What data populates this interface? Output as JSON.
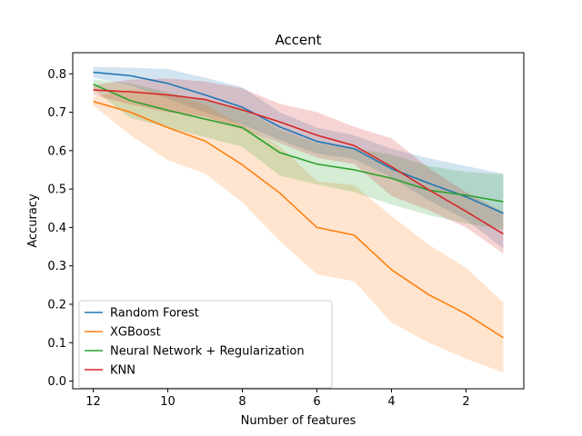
{
  "chart_data": {
    "type": "line",
    "title": "Accent",
    "xlabel": "Number of features",
    "ylabel": "Accuracy",
    "xlim": [
      12.55,
      0.45
    ],
    "ylim": [
      -0.02,
      0.855
    ],
    "x_ticks": [
      12,
      10,
      8,
      6,
      4,
      2
    ],
    "y_ticks": [
      0.0,
      0.1,
      0.2,
      0.3,
      0.4,
      0.5,
      0.6,
      0.7,
      0.8
    ],
    "legend_position": "lower-left",
    "grid": false,
    "x": [
      12,
      11,
      10,
      9,
      8,
      7,
      6,
      5,
      4,
      3,
      2,
      1
    ],
    "series": [
      {
        "name": "Random Forest",
        "color": "#1f77b4",
        "values": [
          0.804,
          0.795,
          0.775,
          0.745,
          0.713,
          0.662,
          0.624,
          0.605,
          0.553,
          0.515,
          0.48,
          0.437
        ],
        "lower": [
          0.79,
          0.77,
          0.735,
          0.7,
          0.668,
          0.628,
          0.592,
          0.578,
          0.53,
          0.47,
          0.42,
          0.345
        ],
        "upper": [
          0.818,
          0.816,
          0.812,
          0.79,
          0.765,
          0.7,
          0.66,
          0.64,
          0.605,
          0.58,
          0.56,
          0.54
        ]
      },
      {
        "name": "XGBoost",
        "color": "#ff7f0e",
        "values": [
          0.728,
          0.7,
          0.66,
          0.625,
          0.563,
          0.49,
          0.4,
          0.38,
          0.29,
          0.225,
          0.175,
          0.113
        ],
        "lower": [
          0.718,
          0.64,
          0.575,
          0.54,
          0.465,
          0.365,
          0.278,
          0.26,
          0.152,
          0.1,
          0.058,
          0.022
        ],
        "upper": [
          0.74,
          0.76,
          0.748,
          0.72,
          0.665,
          0.612,
          0.52,
          0.51,
          0.43,
          0.355,
          0.295,
          0.205
        ]
      },
      {
        "name": "Neural Network + Regularization",
        "color": "#2ca02c",
        "values": [
          0.773,
          0.73,
          0.705,
          0.682,
          0.66,
          0.595,
          0.565,
          0.55,
          0.528,
          0.497,
          0.484,
          0.467
        ],
        "lower": [
          0.76,
          0.685,
          0.66,
          0.635,
          0.61,
          0.535,
          0.512,
          0.492,
          0.46,
          0.432,
          0.41,
          0.395
        ],
        "upper": [
          0.785,
          0.775,
          0.752,
          0.73,
          0.71,
          0.655,
          0.62,
          0.605,
          0.59,
          0.56,
          0.545,
          0.538
        ]
      },
      {
        "name": "KNN",
        "color": "#d62728",
        "values": [
          0.758,
          0.753,
          0.745,
          0.733,
          0.706,
          0.675,
          0.64,
          0.613,
          0.558,
          0.498,
          0.442,
          0.383
        ],
        "lower": [
          0.745,
          0.72,
          0.7,
          0.688,
          0.655,
          0.62,
          0.582,
          0.565,
          0.482,
          0.445,
          0.4,
          0.332
        ],
        "upper": [
          0.77,
          0.785,
          0.788,
          0.78,
          0.762,
          0.722,
          0.7,
          0.662,
          0.632,
          0.555,
          0.492,
          0.44
        ]
      }
    ]
  }
}
